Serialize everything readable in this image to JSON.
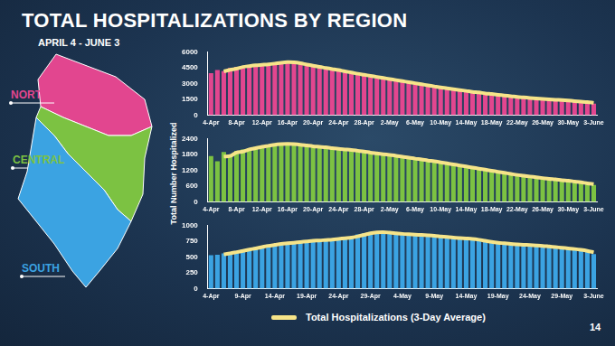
{
  "title": "TOTAL HOSPITALIZATIONS BY REGION",
  "subtitle": "APRIL 4 - JUNE 3",
  "y_label": "Total Number Hospitalized",
  "page": "14",
  "chart_data": [
    {
      "type": "bar",
      "region": "NORTH",
      "grid": false,
      "categories": [
        "4-Apr",
        null,
        null,
        null,
        "8-Apr",
        null,
        null,
        null,
        "12-Apr",
        null,
        null,
        null,
        "16-Apr",
        null,
        null,
        null,
        "20-Apr",
        null,
        null,
        null,
        "24-Apr",
        null,
        null,
        null,
        "28-Apr",
        null,
        null,
        null,
        "2-May",
        null,
        null,
        null,
        "6-May",
        null,
        null,
        null,
        "10-May",
        null,
        null,
        null,
        "14-May",
        null,
        null,
        null,
        "18-May",
        null,
        null,
        null,
        "22-May",
        null,
        null,
        null,
        "26-May",
        null,
        null,
        null,
        "30-May",
        null,
        null,
        null,
        "3-June"
      ],
      "ylim": [
        0,
        6000
      ],
      "yticks": [
        0,
        1500,
        3000,
        4500,
        6000
      ],
      "series": [
        {
          "color": "#e2468f",
          "values": [
            4000,
            4300,
            4200,
            4500,
            4600,
            4700,
            4750,
            4800,
            4850,
            4900,
            5000,
            5100,
            5050,
            4950,
            4850,
            4700,
            4600,
            4500,
            4400,
            4300,
            4200,
            4050,
            3950,
            3850,
            3750,
            3650,
            3550,
            3450,
            3350,
            3250,
            3150,
            3050,
            2950,
            2850,
            2750,
            2650,
            2550,
            2500,
            2400,
            2300,
            2250,
            2150,
            2100,
            2000,
            1950,
            1900,
            1800,
            1750,
            1700,
            1650,
            1600,
            1550,
            1500,
            1480,
            1450,
            1400,
            1350,
            1300,
            1250,
            1200,
            1100
          ]
        },
        {
          "name": "Total Hospitalizations (3-Day Average)",
          "type": "line",
          "color": "#f6e489",
          "values": [
            null,
            null,
            4170,
            4330,
            4430,
            4600,
            4680,
            4750,
            4800,
            4850,
            4920,
            5000,
            5050,
            5030,
            4950,
            4830,
            4720,
            4600,
            4500,
            4400,
            4300,
            4180,
            4070,
            3950,
            3850,
            3750,
            3650,
            3550,
            3450,
            3350,
            3250,
            3150,
            3050,
            2950,
            2850,
            2750,
            2650,
            2570,
            2480,
            2400,
            2320,
            2230,
            2170,
            2080,
            2020,
            1950,
            1880,
            1820,
            1750,
            1700,
            1650,
            1600,
            1550,
            1510,
            1480,
            1440,
            1400,
            1350,
            1300,
            1250,
            1180
          ]
        }
      ]
    },
    {
      "type": "bar",
      "region": "CENTRAL",
      "grid": false,
      "categories": [
        "4-Apr",
        null,
        null,
        null,
        "8-Apr",
        null,
        null,
        null,
        "12-Apr",
        null,
        null,
        null,
        "16-Apr",
        null,
        null,
        null,
        "20-Apr",
        null,
        null,
        null,
        "24-Apr",
        null,
        null,
        null,
        "28-Apr",
        null,
        null,
        null,
        "2-May",
        null,
        null,
        null,
        "6-May",
        null,
        null,
        null,
        "10-May",
        null,
        null,
        null,
        "14-May",
        null,
        null,
        null,
        "18-May",
        null,
        null,
        null,
        "22-May",
        null,
        null,
        null,
        "26-May",
        null,
        null,
        null,
        "30-May",
        null,
        null,
        null,
        "3-June"
      ],
      "ylim": [
        0,
        2400
      ],
      "yticks": [
        0,
        600,
        1200,
        1800,
        2400
      ],
      "series": [
        {
          "color": "#7cc242",
          "values": [
            1750,
            1550,
            1900,
            1800,
            1950,
            2000,
            2050,
            2100,
            2150,
            2180,
            2200,
            2220,
            2200,
            2180,
            2150,
            2120,
            2100,
            2080,
            2050,
            2020,
            2000,
            1980,
            1950,
            1920,
            1880,
            1850,
            1820,
            1800,
            1770,
            1740,
            1700,
            1670,
            1640,
            1600,
            1570,
            1540,
            1500,
            1460,
            1420,
            1380,
            1340,
            1300,
            1260,
            1220,
            1180,
            1140,
            1100,
            1060,
            1020,
            980,
            950,
            920,
            890,
            860,
            840,
            810,
            790,
            760,
            720,
            690,
            650
          ]
        },
        {
          "name": "Total Hospitalizations (3-Day Average)",
          "type": "line",
          "color": "#f6e489",
          "values": [
            null,
            null,
            1730,
            1750,
            1880,
            1920,
            2000,
            2050,
            2100,
            2140,
            2180,
            2200,
            2210,
            2200,
            2180,
            2150,
            2120,
            2100,
            2080,
            2050,
            2020,
            2000,
            1980,
            1950,
            1920,
            1880,
            1850,
            1820,
            1790,
            1760,
            1720,
            1690,
            1650,
            1620,
            1580,
            1550,
            1510,
            1470,
            1430,
            1390,
            1350,
            1310,
            1270,
            1230,
            1190,
            1150,
            1110,
            1070,
            1030,
            1000,
            970,
            940,
            910,
            880,
            860,
            830,
            810,
            780,
            750,
            710,
            680
          ]
        }
      ]
    },
    {
      "type": "bar",
      "region": "SOUTH",
      "grid": false,
      "categories": [
        "4-Apr",
        null,
        null,
        null,
        null,
        "9-Apr",
        null,
        null,
        null,
        null,
        "14-Apr",
        null,
        null,
        null,
        null,
        "19-Apr",
        null,
        null,
        null,
        null,
        "24-Apr",
        null,
        null,
        null,
        null,
        "29-Apr",
        null,
        null,
        null,
        null,
        "4-May",
        null,
        null,
        null,
        null,
        "9-May",
        null,
        null,
        null,
        null,
        "14-May",
        null,
        null,
        null,
        null,
        "19-May",
        null,
        null,
        null,
        null,
        "24-May",
        null,
        null,
        null,
        null,
        "29-May",
        null,
        null,
        null,
        null,
        "3-June"
      ],
      "ylim": [
        0,
        1000
      ],
      "yticks": [
        0,
        250,
        500,
        750,
        1000
      ],
      "series": [
        {
          "color": "#3ba3e2",
          "values": [
            530,
            540,
            560,
            580,
            600,
            620,
            640,
            660,
            680,
            700,
            710,
            720,
            730,
            740,
            750,
            760,
            770,
            770,
            780,
            790,
            800,
            810,
            820,
            860,
            880,
            900,
            900,
            890,
            880,
            870,
            860,
            860,
            850,
            850,
            840,
            830,
            820,
            810,
            800,
            800,
            790,
            780,
            760,
            740,
            730,
            720,
            710,
            700,
            700,
            690,
            690,
            680,
            670,
            660,
            650,
            640,
            630,
            620,
            600,
            580,
            550
          ]
        },
        {
          "name": "Total Hospitalizations (3-Day Average)",
          "type": "line",
          "color": "#f6e489",
          "values": [
            null,
            null,
            545,
            560,
            580,
            600,
            620,
            640,
            660,
            680,
            695,
            710,
            720,
            730,
            740,
            750,
            760,
            765,
            773,
            780,
            790,
            800,
            810,
            830,
            853,
            880,
            893,
            897,
            890,
            880,
            870,
            863,
            857,
            853,
            847,
            840,
            830,
            820,
            810,
            803,
            797,
            790,
            777,
            760,
            743,
            730,
            720,
            710,
            703,
            697,
            693,
            687,
            680,
            670,
            660,
            650,
            640,
            630,
            617,
            600,
            577
          ]
        }
      ]
    }
  ]
}
